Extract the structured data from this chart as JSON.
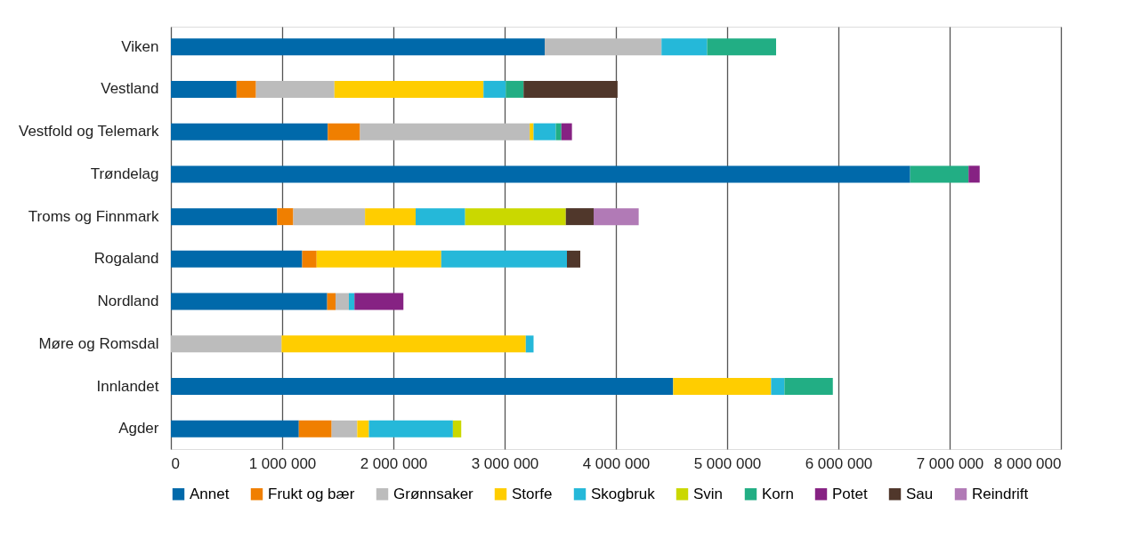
{
  "chart_data": {
    "type": "bar",
    "orientation": "horizontal",
    "stacked": true,
    "categories": [
      "Viken",
      "Vestland",
      "Vestfold og Telemark",
      "Trøndelag",
      "Troms og Finnmark",
      "Rogaland",
      "Nordland",
      "Møre og Romsdal",
      "Innlandet",
      "Agder"
    ],
    "series": [
      {
        "name": "Annet",
        "color": "#0069aa",
        "values": [
          3360000,
          590000,
          1410000,
          6645000,
          955000,
          1180000,
          1405000,
          null,
          4515000,
          1150000
        ]
      },
      {
        "name": "Frukt og bær",
        "color": "#f07f00",
        "values": [
          null,
          175000,
          290000,
          null,
          145000,
          130000,
          75000,
          null,
          null,
          295000
        ]
      },
      {
        "name": "Grønnsaker",
        "color": "#bcbcbc",
        "values": [
          1050000,
          705000,
          1525000,
          null,
          645000,
          null,
          120000,
          995000,
          null,
          230000
        ]
      },
      {
        "name": "Storfe",
        "color": "#ffcd00",
        "values": [
          null,
          1340000,
          35000,
          null,
          455000,
          1120000,
          null,
          2195000,
          880000,
          105000
        ]
      },
      {
        "name": "Skogbruk",
        "color": "#25b8d9",
        "values": [
          410000,
          200000,
          200000,
          null,
          445000,
          1130000,
          50000,
          70000,
          120000,
          755000
        ]
      },
      {
        "name": "Svin",
        "color": "#cad800",
        "values": [
          null,
          null,
          null,
          null,
          905000,
          null,
          null,
          null,
          null,
          75000
        ]
      },
      {
        "name": "Korn",
        "color": "#22ae84",
        "values": [
          620000,
          160000,
          50000,
          525000,
          null,
          null,
          null,
          null,
          435000,
          null
        ]
      },
      {
        "name": "Potet",
        "color": "#862283",
        "values": [
          null,
          null,
          95000,
          100000,
          null,
          null,
          440000,
          null,
          null,
          null
        ]
      },
      {
        "name": "Sau",
        "color": "#50372b",
        "values": [
          null,
          845000,
          null,
          null,
          250000,
          120000,
          null,
          null,
          null,
          null
        ]
      },
      {
        "name": "Reindrift",
        "color": "#b17ab6",
        "values": [
          null,
          null,
          null,
          null,
          405000,
          null,
          null,
          null,
          null,
          null
        ]
      }
    ],
    "xlim": [
      0,
      8000000
    ],
    "xticks": [
      0,
      {
        "value": 1000000,
        "label": "1 000 000"
      },
      {
        "value": 2000000,
        "label": "2 000 000"
      },
      {
        "value": 3000000,
        "label": "3 000 000"
      },
      {
        "value": 4000000,
        "label": "4 000 000"
      },
      {
        "value": 5000000,
        "label": "5 000 000"
      },
      {
        "value": 6000000,
        "label": "6 000 000"
      },
      {
        "value": 7000000,
        "label": "7 000 000"
      },
      {
        "value": 8000000,
        "label": "8 000 000"
      }
    ],
    "grid": "x",
    "legend": "bottom"
  }
}
